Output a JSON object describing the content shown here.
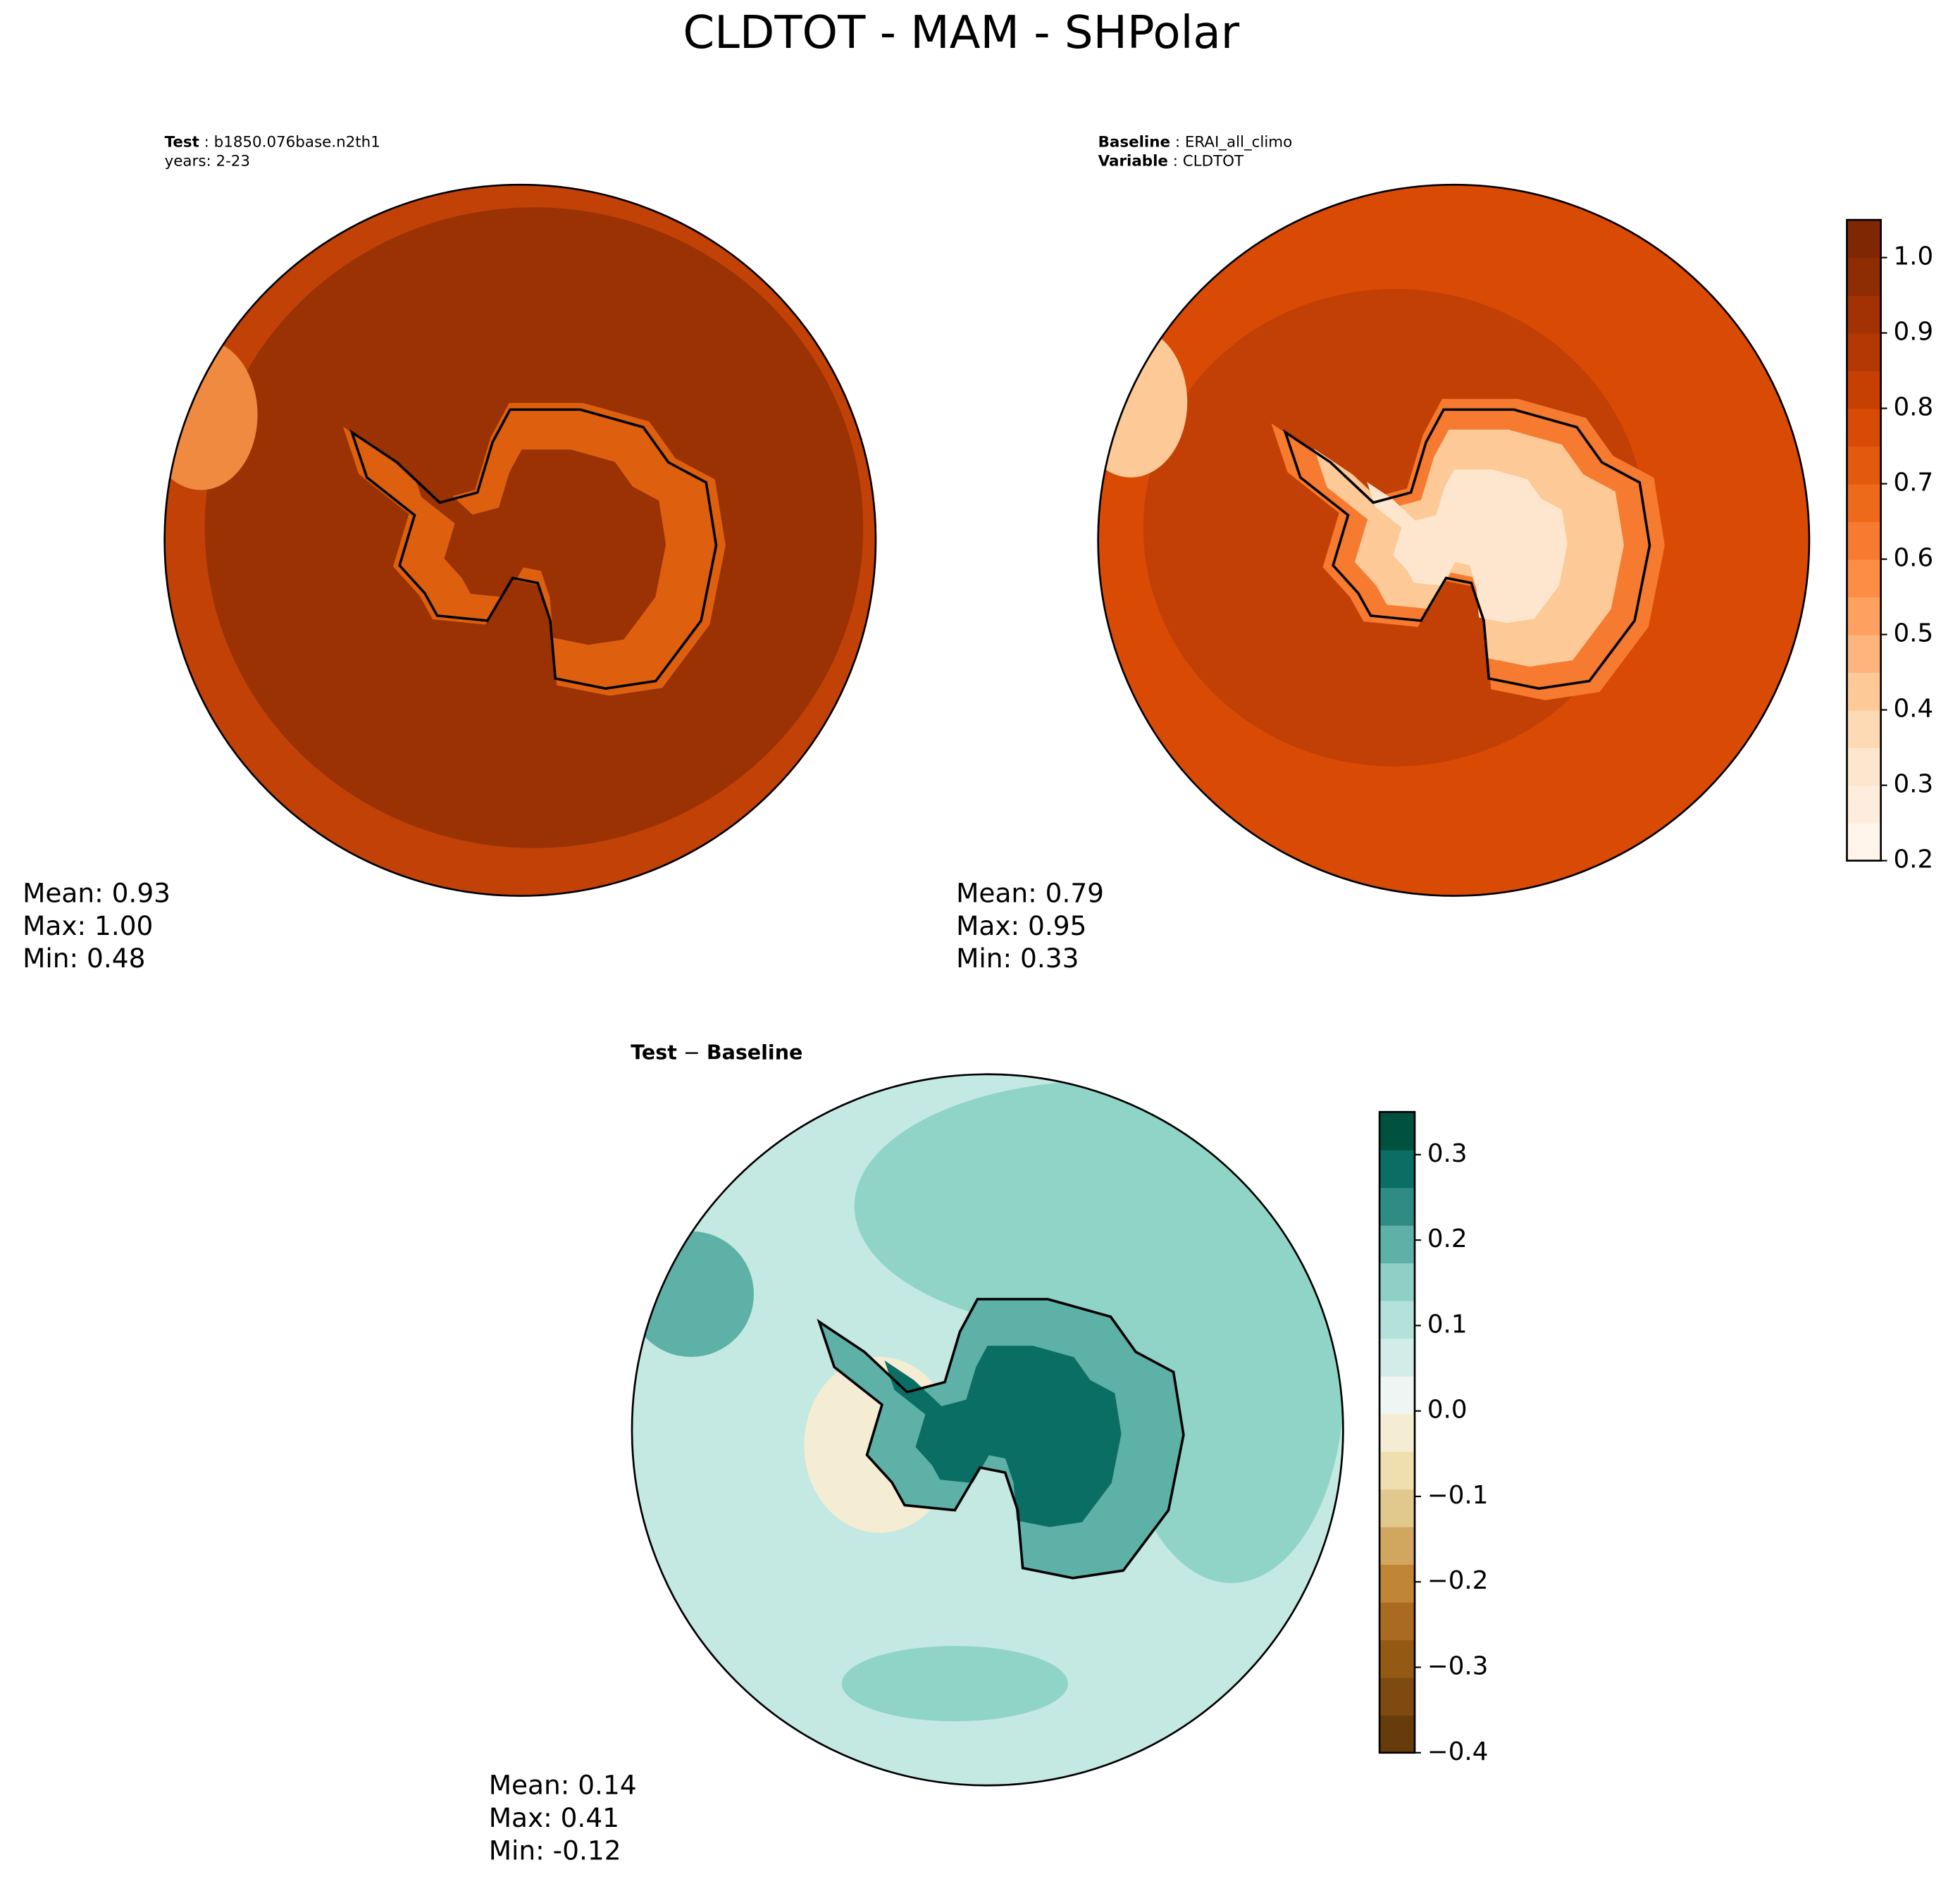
{
  "title": "CLDTOT - MAM - SHPolar",
  "panels": [
    {
      "header": [
        {
          "key": "Test",
          "text": " : b1850.076base.n2th1"
        },
        {
          "text": "years: 2-23"
        }
      ],
      "stats": [
        "Mean:  0.93",
        "Max:  1.00",
        "Min:  0.48"
      ]
    },
    {
      "header": [
        {
          "key": "Baseline",
          "text": " : ERAI_all_climo"
        },
        {
          "key": "Variable",
          "text": " : CLDTOT"
        }
      ],
      "stats": [
        "Mean:  0.79",
        "Max:  0.95",
        "Min:  0.33"
      ]
    },
    {
      "header": [
        {
          "key": "Test",
          "text": " − "
        },
        {
          "key": "Baseline"
        }
      ],
      "stats": [
        "Mean:  0.14",
        "Max:  0.41",
        "Min: -0.12"
      ]
    }
  ],
  "colorbars": [
    {
      "lim": [
        0.2,
        1.05
      ],
      "ticks": [
        0.2,
        0.3,
        0.4,
        0.5,
        0.6,
        0.7,
        0.8,
        0.9,
        {
          "value": 1.0,
          "label": "1.0"
        }
      ],
      "colors": [
        "#fff5eb",
        "#feeddc",
        "#fee6ce",
        "#fdd9b4",
        "#fdc997",
        "#fdb57d",
        "#fda060",
        "#fd8c45",
        "#f67a2f",
        "#ee6a1b",
        "#e35a0e",
        "#d84b05",
        "#c64004",
        "#b33803",
        "#a23203",
        "#8e2c03",
        "#7f2704"
      ]
    },
    {
      "lim": [
        -0.4,
        0.35
      ],
      "ticks": [
        {
          "value": -0.4,
          "label": "−0.4"
        },
        {
          "value": -0.3,
          "label": "−0.3"
        },
        {
          "value": -0.2,
          "label": "−0.2"
        },
        {
          "value": -0.1,
          "label": "−0.1"
        },
        {
          "value": 0.0,
          "label": "0.0"
        },
        0.1,
        0.2,
        0.3
      ],
      "colors": [
        "#673c0a",
        "#7e4a0f",
        "#945a14",
        "#aa6a22",
        "#c08535",
        "#d1a75f",
        "#e1c88c",
        "#efdfae",
        "#f5ecd4",
        "#eef5f3",
        "#d2ece8",
        "#b4e1da",
        "#8ed0c6",
        "#5db1a7",
        "#2e8c85",
        "#0b6e65",
        "#01513f"
      ]
    }
  ]
}
